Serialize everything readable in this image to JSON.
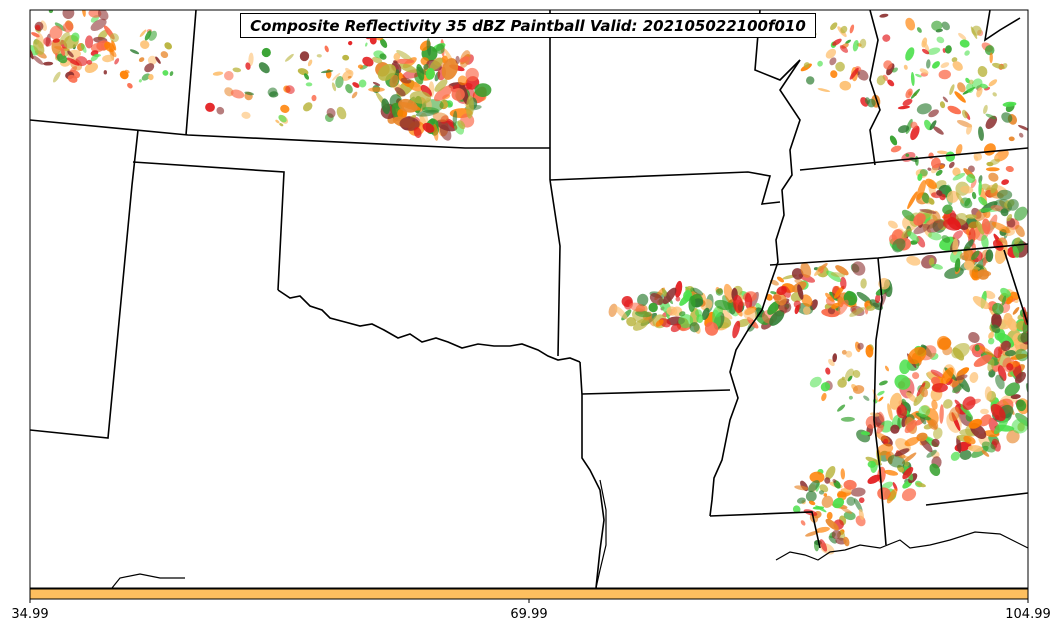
{
  "title": "Composite Reflectivity 35 dBZ Paintball Valid: 202105022100f010",
  "colorbar": {
    "tick_labels": [
      "34.99",
      "69.99",
      "104.99"
    ],
    "fill_color": "#fdbf5f"
  },
  "colors": {
    "member_palette": [
      "#e31a1c",
      "#ff7f00",
      "#fdbf6f",
      "#fb6a4a",
      "#8b2e2e",
      "#33a02c",
      "#4be04b",
      "#b8b33a",
      "#2e7d32",
      "#e8862a"
    ],
    "state_borders": "#000000"
  }
}
